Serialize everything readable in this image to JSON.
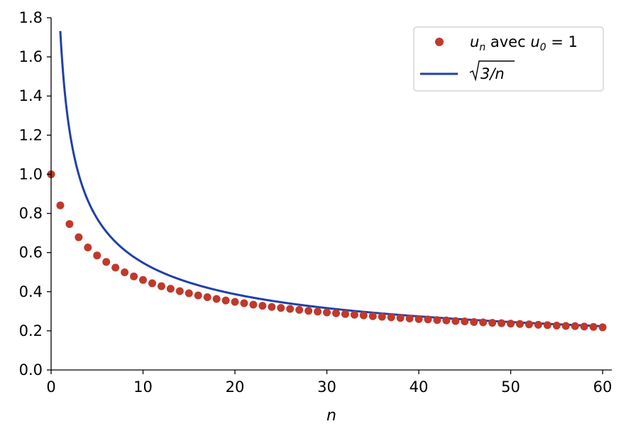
{
  "chart_data": {
    "type": "line",
    "title": "",
    "xlabel": "n",
    "ylabel": "",
    "xlim": [
      0,
      61
    ],
    "ylim": [
      0.0,
      1.8
    ],
    "x_ticks": [
      0,
      10,
      20,
      30,
      40,
      50,
      60
    ],
    "x_tick_labels": [
      "0",
      "10",
      "20",
      "30",
      "40",
      "50",
      "60"
    ],
    "y_ticks": [
      0.0,
      0.2,
      0.4,
      0.6,
      0.8,
      1.0,
      1.2,
      1.4,
      1.6,
      1.8
    ],
    "y_tick_labels": [
      "0.0",
      "0.2",
      "0.4",
      "0.6",
      "0.8",
      "1.0",
      "1.2",
      "1.4",
      "1.6",
      "1.8"
    ],
    "grid": false,
    "legend": {
      "placement": "top-right",
      "entries": [
        {
          "series": "un",
          "u_var": "u",
          "sub_n": "n",
          "mid_text": " avec ",
          "sub_0": "0",
          "eq_text": " = 1"
        },
        {
          "series": "sqrt",
          "radicand": "3/n"
        }
      ]
    },
    "series": [
      {
        "id": "un",
        "kind": "scatter",
        "color": "#c0392b",
        "x": [
          0,
          1,
          2,
          3,
          4,
          5,
          6,
          7,
          8,
          9,
          10,
          11,
          12,
          13,
          14,
          15,
          16,
          17,
          18,
          19,
          20,
          21,
          22,
          23,
          24,
          25,
          26,
          27,
          28,
          29,
          30,
          31,
          32,
          33,
          34,
          35,
          36,
          37,
          38,
          39,
          40,
          41,
          42,
          43,
          44,
          45,
          46,
          47,
          48,
          49,
          50,
          51,
          52,
          53,
          54,
          55,
          56,
          57,
          58,
          59,
          60
        ],
        "y": [
          1.0,
          0.841,
          0.746,
          0.678,
          0.626,
          0.585,
          0.552,
          0.523,
          0.499,
          0.478,
          0.46,
          0.443,
          0.428,
          0.415,
          0.403,
          0.392,
          0.381,
          0.372,
          0.363,
          0.355,
          0.348,
          0.341,
          0.334,
          0.328,
          0.322,
          0.317,
          0.312,
          0.307,
          0.302,
          0.298,
          0.294,
          0.29,
          0.286,
          0.282,
          0.279,
          0.275,
          0.272,
          0.269,
          0.266,
          0.263,
          0.26,
          0.258,
          0.255,
          0.253,
          0.25,
          0.248,
          0.245,
          0.243,
          0.241,
          0.239,
          0.237,
          0.235,
          0.233,
          0.231,
          0.229,
          0.227,
          0.225,
          0.224,
          0.222,
          0.22,
          0.218
        ]
      },
      {
        "id": "sqrt",
        "kind": "line",
        "color": "#2140a8",
        "function": "sqrt(3/n)",
        "x_range": [
          1,
          60
        ]
      }
    ]
  }
}
